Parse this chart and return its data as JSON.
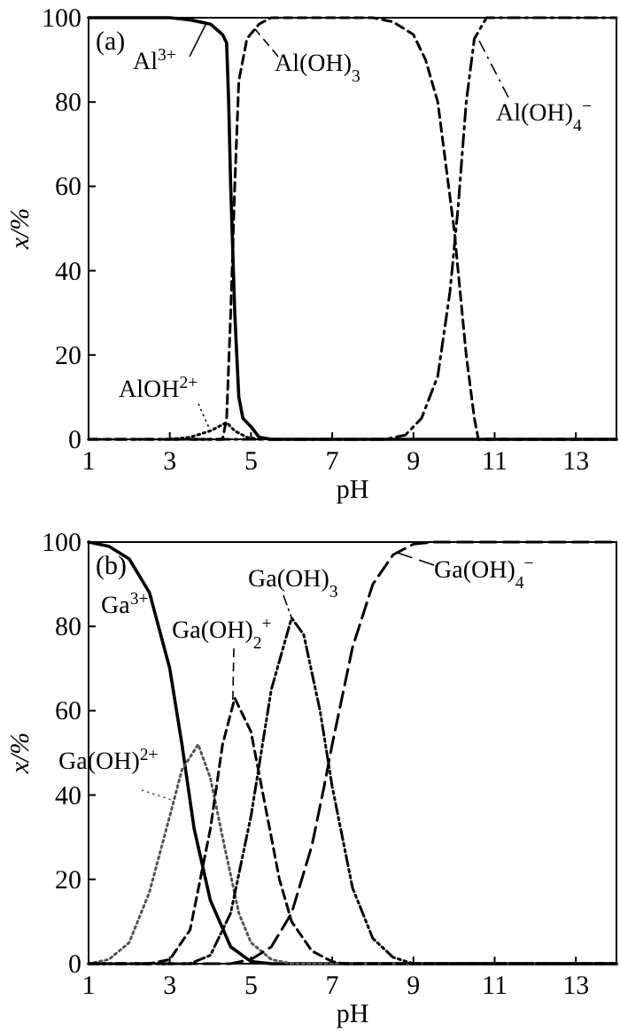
{
  "chart_data": [
    {
      "type": "line",
      "xlabel": "pH",
      "ylabel": "x/%",
      "xlim": [
        1,
        14
      ],
      "ylim": [
        0,
        100
      ],
      "xticks": [
        1,
        3,
        5,
        7,
        9,
        11,
        13
      ],
      "yticks": [
        0,
        20,
        40,
        60,
        80,
        100
      ],
      "grid": false,
      "annotations": [
        "(a)"
      ],
      "series": [
        {
          "name": "Al$^{3+}$",
          "color": "#000000",
          "line_style": "solid",
          "x": [
            1,
            3,
            3.5,
            4,
            4.3,
            4.4,
            4.45,
            4.5,
            4.6,
            4.7,
            4.8,
            5,
            5.2,
            5.5,
            14
          ],
          "values": [
            100,
            100,
            99.5,
            98.5,
            96,
            94,
            80,
            60,
            30,
            10,
            5,
            3,
            0.5,
            0,
            0
          ]
        },
        {
          "name": "AlOH$^{2+}$",
          "color": "#000000",
          "line_style": "dotted",
          "x": [
            3,
            3.5,
            4,
            4.4,
            4.6,
            4.9,
            5.2
          ],
          "values": [
            0,
            0.5,
            2,
            4,
            2,
            0.5,
            0
          ]
        },
        {
          "name": "Al(OH)$_{3}$",
          "color": "#000000",
          "line_style": "dashed",
          "x": [
            1,
            4.3,
            4.4,
            4.5,
            4.6,
            4.7,
            4.9,
            5.2,
            5.5,
            8,
            8.5,
            9,
            9.3,
            9.6,
            9.8,
            10,
            10.1,
            10.3,
            10.5,
            10.6,
            14
          ],
          "values": [
            0,
            0,
            5,
            30,
            60,
            85,
            95,
            98.5,
            100,
            100,
            99,
            96,
            90,
            80,
            65,
            50,
            40,
            20,
            5,
            0,
            0
          ]
        },
        {
          "name": "Al(OH)$_{4}$$^{−}$",
          "color": "#000000",
          "line_style": "dashdot",
          "x": [
            1,
            8.3,
            8.8,
            9.2,
            9.6,
            9.9,
            10.1,
            10.3,
            10.5,
            10.8,
            14
          ],
          "values": [
            0,
            0,
            1,
            5,
            15,
            35,
            55,
            80,
            95,
            100,
            100
          ]
        }
      ]
    },
    {
      "type": "line",
      "xlabel": "pH",
      "ylabel": "x/%",
      "xlim": [
        1,
        14
      ],
      "ylim": [
        0,
        100
      ],
      "xticks": [
        1,
        3,
        5,
        7,
        9,
        11,
        13
      ],
      "yticks": [
        0,
        20,
        40,
        60,
        80,
        100
      ],
      "grid": false,
      "annotations": [
        "(b)"
      ],
      "series": [
        {
          "name": "Ga$^{3+}$",
          "color": "#000000",
          "line_style": "solid",
          "x": [
            1,
            1.5,
            2,
            2.5,
            3,
            3.3,
            3.6,
            4,
            4.5,
            5,
            5.5,
            14
          ],
          "values": [
            100,
            99,
            96,
            88,
            70,
            52,
            32,
            15,
            4,
            0.5,
            0,
            0
          ]
        },
        {
          "name": "Ga(OH)$^{2+}$",
          "color": "#555555",
          "line_style": "dotted",
          "x": [
            1,
            1.5,
            2,
            2.5,
            3,
            3.3,
            3.7,
            4,
            4.3,
            4.7,
            5,
            5.5,
            6,
            14
          ],
          "values": [
            0,
            1,
            5,
            17,
            35,
            46,
            52,
            44,
            30,
            12,
            5,
            1,
            0,
            0
          ]
        },
        {
          "name": "Ga(OH)$_{2}$$^{+}$",
          "color": "#000000",
          "line_style": "dashed",
          "x": [
            1,
            2.5,
            3,
            3.5,
            4,
            4.3,
            4.6,
            5,
            5.3,
            5.7,
            6,
            6.5,
            7,
            7.3,
            14
          ],
          "values": [
            0,
            0,
            1,
            8,
            32,
            52,
            63,
            55,
            40,
            20,
            10,
            3,
            0.5,
            0,
            0
          ]
        },
        {
          "name": "Ga(OH)$_{3}$",
          "color": "#000000",
          "line_style": "dashdotdot",
          "x": [
            1,
            3.5,
            4,
            4.5,
            5,
            5.5,
            6,
            6.3,
            6.7,
            7,
            7.5,
            8,
            8.5,
            9,
            14
          ],
          "values": [
            0,
            0,
            2,
            12,
            35,
            65,
            82,
            78,
            60,
            42,
            18,
            6,
            1.5,
            0,
            0
          ]
        },
        {
          "name": "Ga(OH)$_{4}$$^{−}$",
          "color": "#000000",
          "line_style": "longdash",
          "x": [
            1,
            4.5,
            5,
            5.5,
            6,
            6.5,
            6.8,
            7,
            7.5,
            8,
            8.5,
            9,
            9.5,
            14
          ],
          "values": [
            0,
            0,
            1,
            4,
            12,
            28,
            42,
            52,
            75,
            90,
            97,
            99.5,
            100,
            100
          ]
        }
      ]
    }
  ]
}
